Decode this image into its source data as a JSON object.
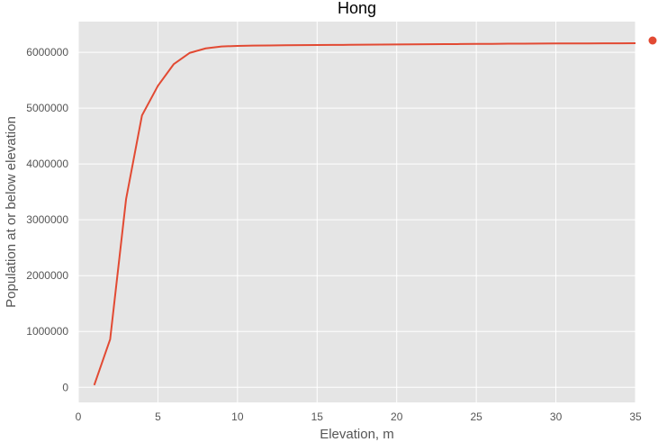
{
  "chart_data": {
    "type": "line",
    "title": "Hong",
    "xlabel": "Elevation, m",
    "ylabel": "Population at or below elevation",
    "xlim": [
      0,
      35
    ],
    "ylim": [
      -270000,
      6550000
    ],
    "xticks": [
      0,
      5,
      10,
      15,
      20,
      25,
      30,
      35
    ],
    "yticks": [
      0,
      1000000,
      2000000,
      3000000,
      4000000,
      5000000,
      6000000
    ],
    "xtick_labels": [
      "0",
      "5",
      "10",
      "15",
      "20",
      "25",
      "30",
      "35"
    ],
    "ytick_labels": [
      "0",
      "1000000",
      "2000000",
      "3000000",
      "4000000",
      "5000000",
      "6000000"
    ],
    "grid": true,
    "legend": "outside-top-right",
    "series": [
      {
        "color": "#E24A33",
        "x": [
          1,
          2,
          3,
          4,
          5,
          6,
          7,
          8,
          9,
          10,
          11,
          12,
          13,
          14,
          15,
          16,
          17,
          18,
          19,
          20,
          21,
          22,
          23,
          24,
          25,
          26,
          27,
          28,
          29,
          30,
          31,
          32,
          33,
          34,
          35
        ],
        "y": [
          40000,
          860000,
          3370000,
          4870000,
          5400000,
          5790000,
          5990000,
          6070000,
          6105000,
          6115000,
          6120000,
          6123000,
          6126000,
          6128000,
          6130000,
          6132000,
          6134000,
          6136000,
          6138000,
          6140000,
          6142000,
          6144000,
          6146000,
          6148000,
          6150000,
          6152000,
          6154000,
          6156000,
          6157000,
          6158000,
          6159000,
          6160000,
          6161000,
          6162000,
          6163000
        ]
      }
    ]
  },
  "colors": {
    "plot_background": "#E5E5E5",
    "grid": "#FFFFFF",
    "line": "#E24A33"
  }
}
